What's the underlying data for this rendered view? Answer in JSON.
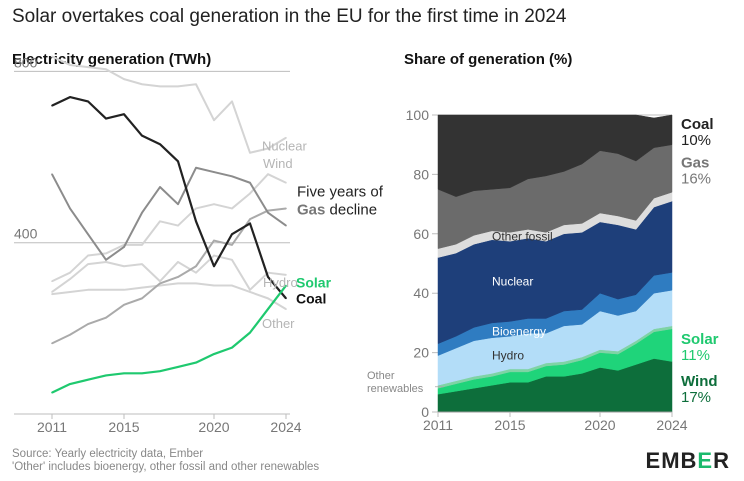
{
  "header": {
    "title": "Solar overtakes coal generation in the EU for the first time in 2024",
    "left_subtitle": "Electricity generation (TWh)",
    "right_subtitle": "Share of generation (%)"
  },
  "footer": {
    "source": "Source: Yearly electricity data, Ember",
    "note": "'Other' includes bioenergy, other fossil and other renewables"
  },
  "logo": {
    "left": "EMB",
    "mid": "E",
    "right": "R",
    "accent": "#1bba6d"
  },
  "chart_data": [
    {
      "type": "line",
      "title": "Electricity generation (TWh)",
      "x": [
        2011,
        2012,
        2013,
        2014,
        2015,
        2016,
        2017,
        2018,
        2019,
        2020,
        2021,
        2022,
        2023,
        2024
      ],
      "xticks": [
        2011,
        2015,
        2020,
        2024
      ],
      "yticks": [
        400,
        800
      ],
      "ylim": [
        0,
        850
      ],
      "grid_y": [
        400,
        800
      ],
      "annotation": {
        "line1": "Five years of",
        "bold": "Gas",
        "rest": " decline"
      },
      "series": [
        {
          "name": "Nuclear",
          "color": "#d4d4d4",
          "values": [
            835,
            815,
            810,
            805,
            782,
            770,
            765,
            765,
            770,
            686,
            730,
            610,
            620,
            645
          ]
        },
        {
          "name": "Wind",
          "color": "#d4d4d4",
          "values": [
            310,
            330,
            370,
            375,
            395,
            395,
            450,
            440,
            480,
            490,
            480,
            515,
            560,
            540
          ]
        },
        {
          "name": "Hydro",
          "color": "#d4d4d4",
          "values": [
            285,
            315,
            350,
            355,
            345,
            350,
            310,
            355,
            330,
            370,
            360,
            290,
            330,
            325
          ]
        },
        {
          "name": "Other",
          "color": "#d4d4d4",
          "values": [
            280,
            285,
            290,
            290,
            290,
            295,
            300,
            305,
            305,
            300,
            300,
            285,
            270,
            245
          ]
        },
        {
          "name": "",
          "color": "#aaaaaa",
          "values": [
            165,
            185,
            210,
            225,
            255,
            270,
            305,
            320,
            345,
            405,
            395,
            455,
            475,
            480
          ]
        },
        {
          "name": "Gas",
          "color": "#8c8c8c",
          "values": [
            560,
            480,
            420,
            360,
            390,
            470,
            530,
            490,
            575,
            565,
            555,
            540,
            470,
            440
          ]
        },
        {
          "name": "Coal",
          "color": "#222222",
          "values": [
            720,
            740,
            730,
            690,
            700,
            650,
            630,
            590,
            450,
            345,
            420,
            445,
            320,
            270
          ]
        },
        {
          "name": "Solar",
          "color": "#1fc96f",
          "values": [
            50,
            70,
            80,
            90,
            95,
            95,
            100,
            110,
            120,
            140,
            155,
            190,
            245,
            300
          ]
        }
      ]
    },
    {
      "type": "area",
      "title": "Share of generation (%)",
      "x": [
        2011,
        2012,
        2013,
        2014,
        2015,
        2016,
        2017,
        2018,
        2019,
        2020,
        2021,
        2022,
        2023,
        2024
      ],
      "xticks": [
        2011,
        2015,
        2020,
        2024
      ],
      "yticks": [
        0,
        20,
        40,
        60,
        80,
        100
      ],
      "ylim": [
        0,
        100
      ],
      "stack_order": [
        "Wind",
        "Solar",
        "Other renewables",
        "Hydro",
        "Bioenergy",
        "Nuclear",
        "Other fossil",
        "Gas",
        "Coal"
      ],
      "series": [
        {
          "name": "Wind",
          "color": "#0d6e3b",
          "values": [
            6,
            7,
            8,
            9,
            10,
            10,
            12,
            12,
            13,
            15,
            14,
            16,
            18,
            17
          ]
        },
        {
          "name": "Solar",
          "color": "#1fd47a",
          "values": [
            2,
            2.5,
            3,
            3,
            3.5,
            3.5,
            3.5,
            4,
            4.5,
            5,
            5.5,
            7,
            9,
            11
          ]
        },
        {
          "name": "Other renewables",
          "color": "#7fd3a5",
          "values": [
            1,
            1,
            1,
            1,
            1,
            1,
            1,
            1,
            1,
            1,
            1,
            1,
            1,
            1
          ]
        },
        {
          "name": "Hydro",
          "color": "#b3ddf8",
          "values": [
            10,
            11,
            12,
            12,
            11,
            12,
            10,
            12,
            11,
            13,
            12,
            10,
            12,
            12
          ]
        },
        {
          "name": "Bioenergy",
          "color": "#2f7cc1",
          "values": [
            4,
            4,
            4.5,
            5,
            5,
            5,
            5,
            5,
            5,
            6,
            5.5,
            5.5,
            6,
            6
          ]
        },
        {
          "name": "Nuclear",
          "color": "#1e3f7a",
          "values": [
            29,
            28,
            28,
            28,
            27,
            27,
            26,
            26,
            26,
            24,
            25,
            22,
            23,
            24
          ]
        },
        {
          "name": "Other fossil",
          "color": "#dddddd",
          "values": [
            3,
            3,
            3,
            3,
            3,
            3,
            3,
            3,
            3,
            3,
            3,
            3,
            3,
            3
          ]
        },
        {
          "name": "Gas",
          "color": "#6b6b6b",
          "values": [
            20,
            16,
            15,
            14,
            15,
            17,
            19,
            18,
            20,
            21,
            21,
            20,
            17,
            16
          ]
        },
        {
          "name": "Coal",
          "color": "#333333",
          "values": [
            25,
            27.5,
            25.5,
            25,
            24.5,
            21.5,
            20.5,
            19,
            16.5,
            12,
            13,
            15.5,
            10,
            10
          ]
        }
      ],
      "end_labels": [
        {
          "name": "Coal",
          "value": "10%"
        },
        {
          "name": "Gas",
          "value": "16%"
        },
        {
          "name": "Solar",
          "value": "11%"
        },
        {
          "name": "Wind",
          "value": "17%"
        }
      ]
    }
  ]
}
